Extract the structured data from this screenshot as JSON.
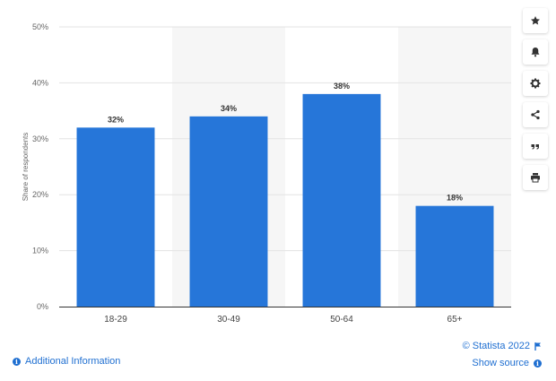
{
  "chart_data": {
    "type": "bar",
    "categories": [
      "18-29",
      "30-49",
      "50-64",
      "65+"
    ],
    "values": [
      32,
      34,
      38,
      18
    ],
    "data_labels": [
      "32%",
      "34%",
      "38%",
      "18%"
    ],
    "ylabel": "Share of respondents",
    "ylim": [
      0,
      50
    ],
    "yticks": [
      0,
      10,
      20,
      30,
      40,
      50
    ],
    "ytick_labels": [
      "0%",
      "10%",
      "20%",
      "30%",
      "40%",
      "50%"
    ],
    "bar_color": "#2676d9",
    "band_color": "#f6f6f6",
    "grid": true,
    "legend": "none"
  },
  "toolbar": {
    "items": [
      {
        "name": "favorite-button",
        "icon": "star-icon"
      },
      {
        "name": "notification-button",
        "icon": "bell-icon"
      },
      {
        "name": "settings-button",
        "icon": "gear-icon"
      },
      {
        "name": "share-button",
        "icon": "share-icon"
      },
      {
        "name": "cite-button",
        "icon": "quote-icon"
      },
      {
        "name": "print-button",
        "icon": "printer-icon"
      }
    ]
  },
  "footer": {
    "additional_info": "Additional Information",
    "copyright": "© Statista 2022",
    "show_source": "Show source",
    "link_color": "#1f6fd1"
  }
}
